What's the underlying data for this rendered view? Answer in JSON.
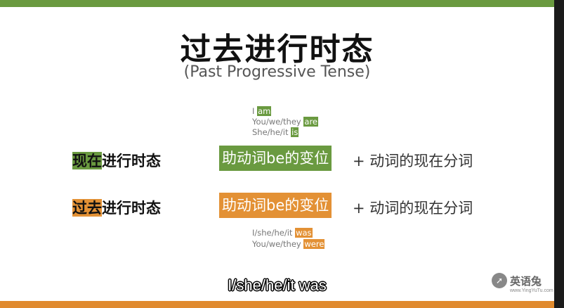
{
  "title": "过去进行时态",
  "subtitle": "(Past Progressive Tense)",
  "present_forms": [
    {
      "subject": "I ",
      "verb": "am"
    },
    {
      "subject": "You/we/they ",
      "verb": "are"
    },
    {
      "subject": "She/he/it ",
      "verb": "is"
    }
  ],
  "rows": {
    "present": {
      "label_highlight": "现在",
      "label_rest": "进行时态",
      "box": "助动词be的变位",
      "rest": "+ 动词的现在分词"
    },
    "past": {
      "label_highlight": "过去",
      "label_rest": "进行时态",
      "box": "助动词be的变位",
      "rest": "+ 动词的现在分词"
    }
  },
  "past_forms": [
    {
      "subject": "I/she/he/it ",
      "verb": "was"
    },
    {
      "subject": "You/we/they ",
      "verb": "were"
    }
  ],
  "caption": "I/she/he/it was",
  "watermark": {
    "icon": "arrow-logo-icon",
    "name": "英语兔",
    "url": "www.YingYuTu.com"
  },
  "colors": {
    "green": "#6a9a40",
    "orange": "#e39135"
  }
}
